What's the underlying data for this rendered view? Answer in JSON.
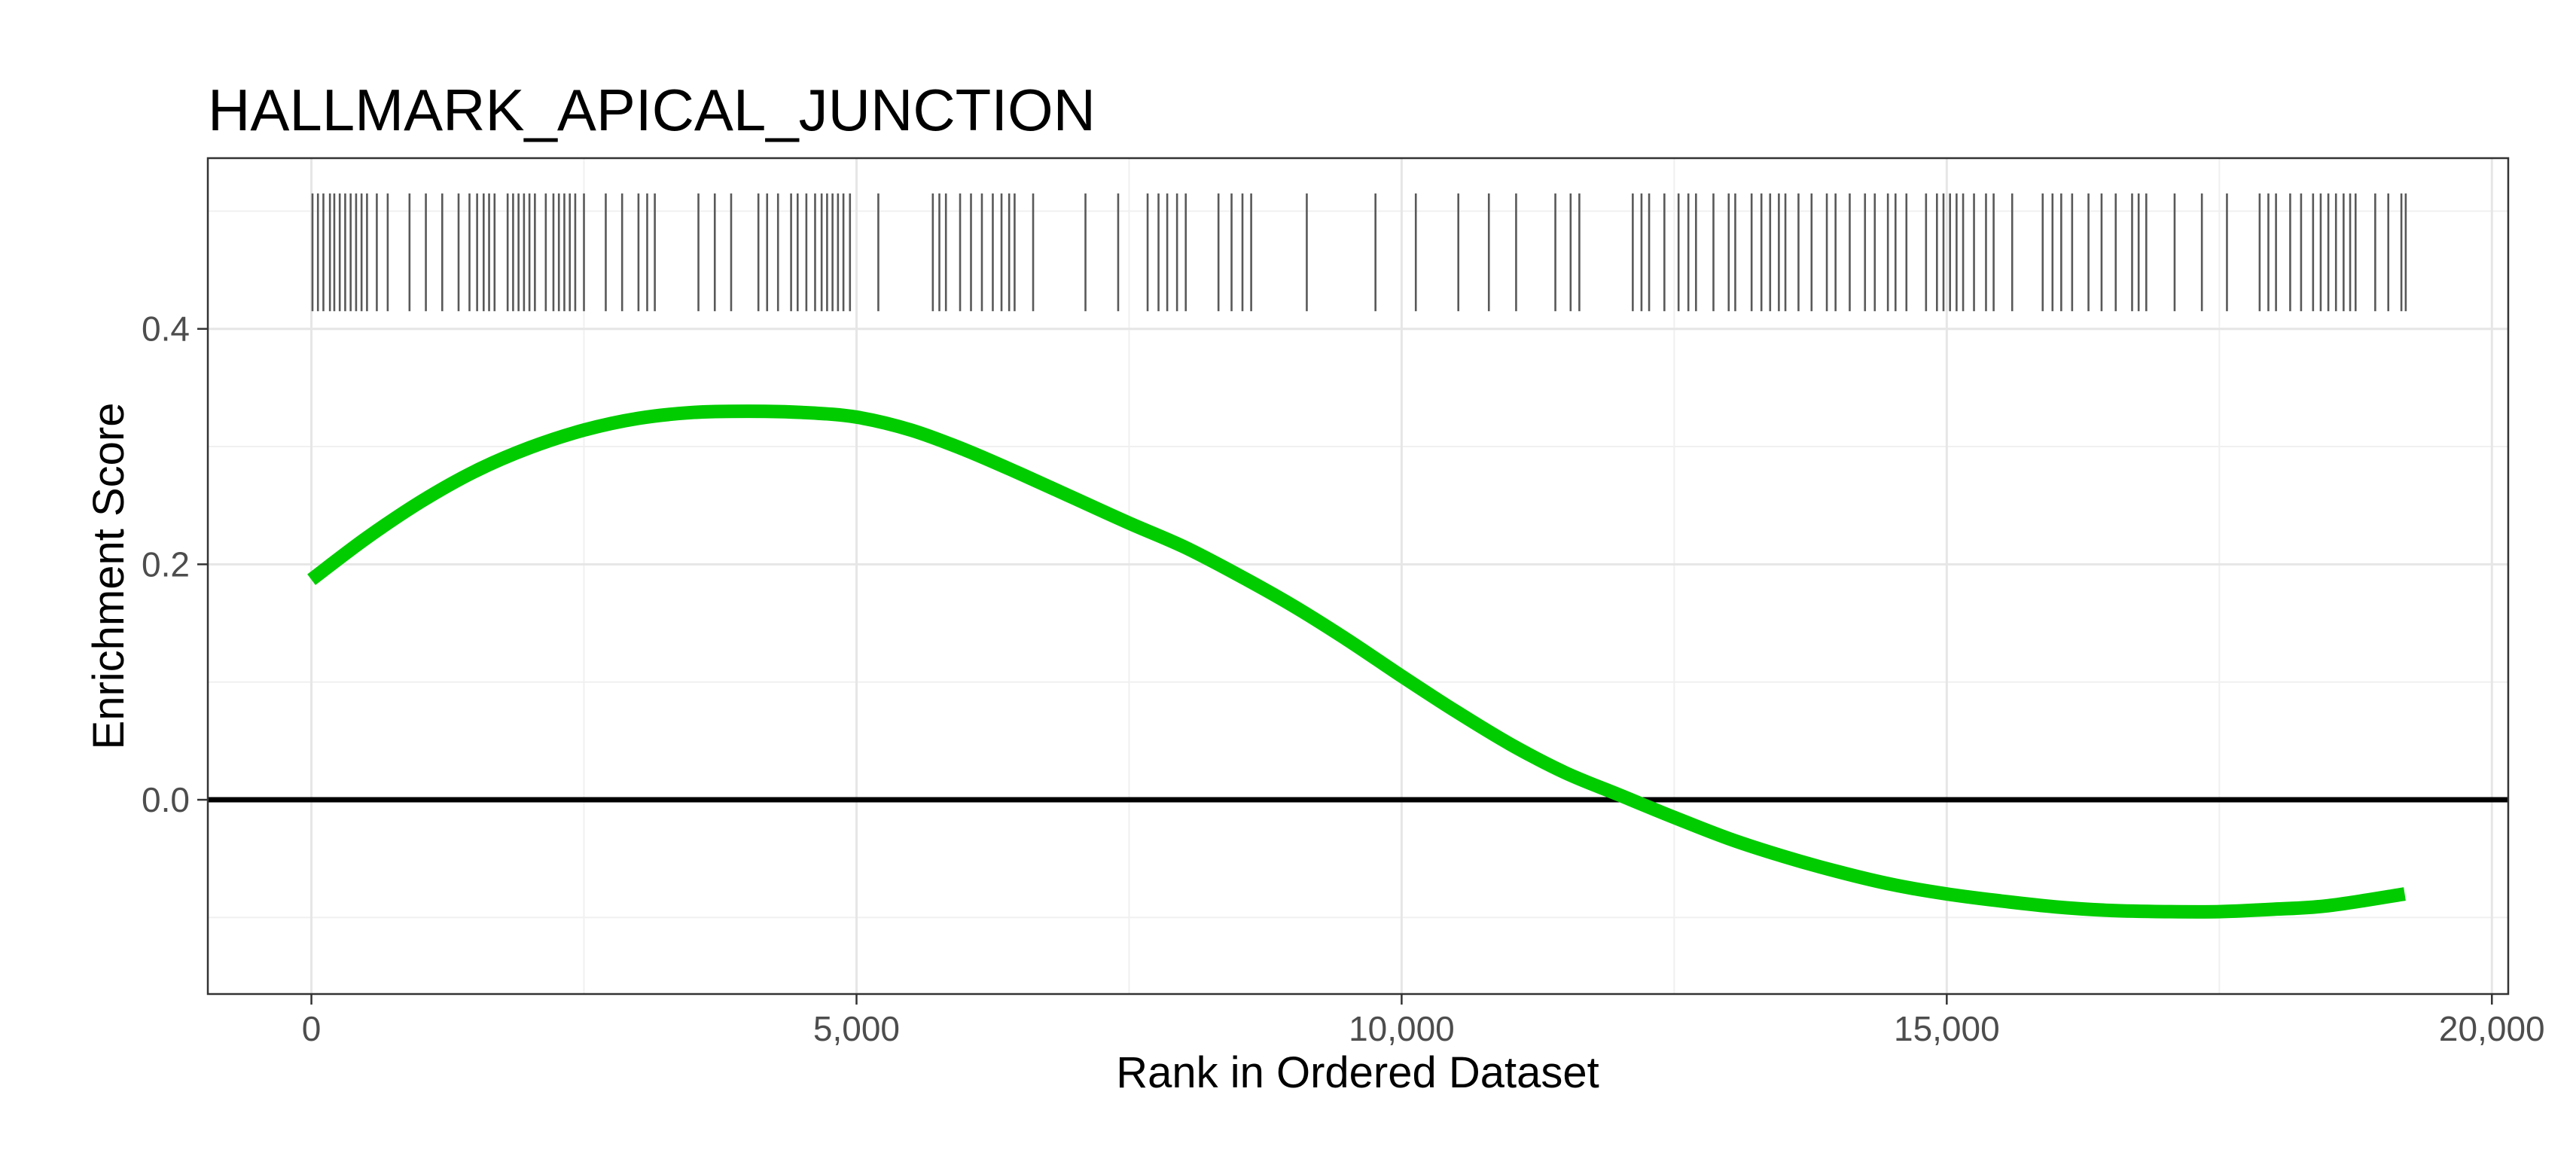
{
  "chart_data": {
    "type": "line",
    "title": "HALLMARK_APICAL_JUNCTION",
    "xlabel": "Rank in Ordered Dataset",
    "ylabel": "Enrichment Score",
    "xlim": [
      -950,
      20150
    ],
    "ylim": [
      -0.165,
      0.545
    ],
    "x_ticks": [
      0,
      5000,
      10000,
      15000,
      20000
    ],
    "x_tick_labels": [
      "0",
      "5,000",
      "10,000",
      "15,000",
      "20,000"
    ],
    "y_ticks": [
      0.0,
      0.2,
      0.4
    ],
    "y_tick_labels": [
      "0.0",
      "0.2",
      "0.4"
    ],
    "grid": true,
    "legend": "none",
    "reference_line_y": 0.0,
    "series": [
      {
        "color": "#00cc00",
        "x": [
          0,
          500,
          1000,
          1500,
          2000,
          2500,
          3000,
          3500,
          4000,
          4500,
          5000,
          5500,
          6000,
          6500,
          7000,
          7500,
          8000,
          8500,
          9000,
          9500,
          10000,
          10500,
          11000,
          11500,
          12000,
          12500,
          13000,
          13500,
          14000,
          14500,
          15000,
          15500,
          16000,
          16500,
          17000,
          17500,
          18000,
          18500,
          19200
        ],
        "y": [
          0.187,
          0.222,
          0.253,
          0.279,
          0.299,
          0.314,
          0.324,
          0.329,
          0.33,
          0.329,
          0.325,
          0.314,
          0.297,
          0.277,
          0.256,
          0.235,
          0.215,
          0.191,
          0.165,
          0.136,
          0.105,
          0.075,
          0.047,
          0.023,
          0.004,
          -0.015,
          -0.033,
          -0.048,
          -0.061,
          -0.072,
          -0.08,
          -0.086,
          -0.091,
          -0.094,
          -0.095,
          -0.095,
          -0.093,
          -0.09,
          -0.08
        ]
      }
    ],
    "gene_hits": {
      "color": "#595959",
      "y_range": [
        0.415,
        0.515
      ],
      "ranks": [
        10,
        60,
        110,
        170,
        210,
        260,
        310,
        360,
        410,
        460,
        510,
        600,
        700,
        900,
        1050,
        1200,
        1350,
        1450,
        1520,
        1580,
        1630,
        1680,
        1800,
        1850,
        1900,
        1950,
        2000,
        2050,
        2150,
        2220,
        2270,
        2320,
        2370,
        2420,
        2500,
        2700,
        2850,
        3000,
        3080,
        3150,
        3550,
        3700,
        3850,
        4100,
        4180,
        4280,
        4400,
        4460,
        4540,
        4620,
        4680,
        4730,
        4780,
        4830,
        4880,
        4940,
        5200,
        5700,
        5760,
        5820,
        5950,
        6050,
        6150,
        6250,
        6330,
        6400,
        6450,
        6620,
        7100,
        7400,
        7670,
        7770,
        7850,
        7940,
        8020,
        8320,
        8440,
        8540,
        8620,
        9130,
        9760,
        10130,
        10520,
        10800,
        11050,
        11410,
        11550,
        11630,
        12120,
        12200,
        12270,
        12410,
        12540,
        12630,
        12700,
        12860,
        13000,
        13060,
        13210,
        13300,
        13380,
        13460,
        13520,
        13640,
        13760,
        13900,
        13980,
        14110,
        14250,
        14340,
        14460,
        14530,
        14630,
        14810,
        14910,
        14970,
        15030,
        15090,
        15150,
        15250,
        15360,
        15430,
        15600,
        15880,
        15970,
        16050,
        16150,
        16300,
        16420,
        16550,
        16700,
        16760,
        16830,
        17090,
        17340,
        17570,
        17870,
        17950,
        18020,
        18150,
        18250,
        18360,
        18430,
        18500,
        18570,
        18640,
        18700,
        18750,
        18930,
        19050,
        19170,
        19210
      ]
    }
  }
}
